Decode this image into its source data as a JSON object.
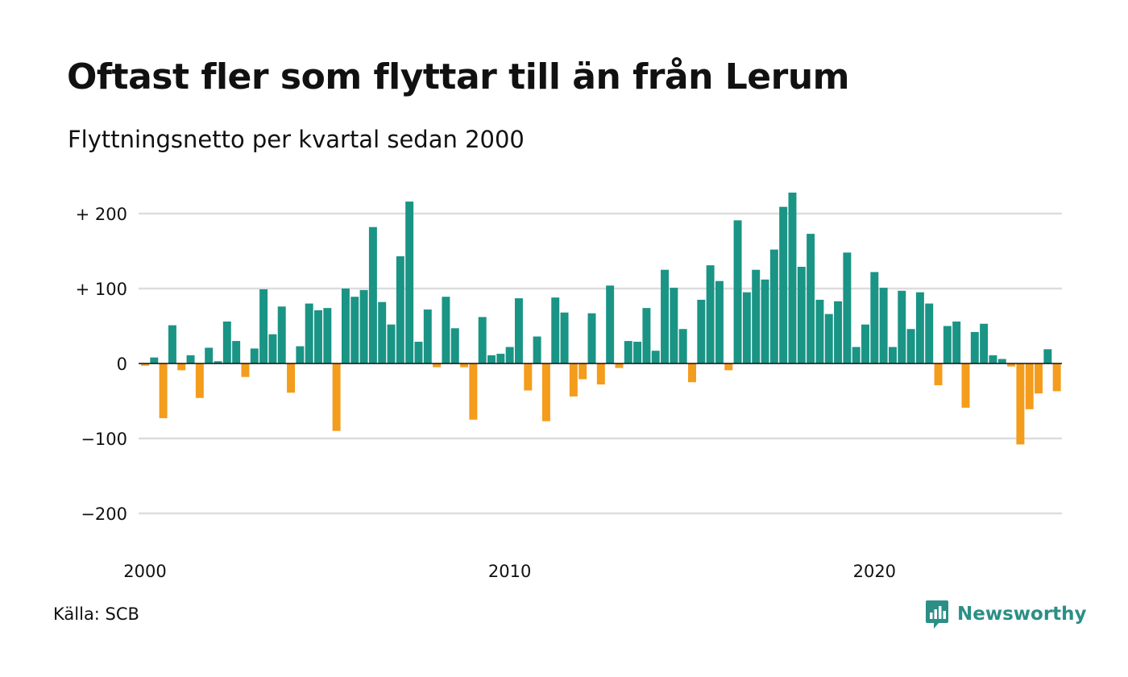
{
  "title": "Oftast fler som flyttar till än från Lerum",
  "subtitle": "Flyttningsnetto per kvartal sedan 2000",
  "source": "Källa: SCB",
  "brand": {
    "name": "Newsworthy",
    "icon": "newsworthy-logo-icon",
    "color": "#2b8f86"
  },
  "colors": {
    "positive": "#1a9485",
    "negative": "#f49c1c",
    "grid": "#dddddd",
    "zero_line": "#111111"
  },
  "chart_data": {
    "type": "bar",
    "x_unit": "quarter",
    "x_start": "2000 Q1",
    "x_ticks": [
      "2000",
      "2010",
      "2020"
    ],
    "y_ticks": [
      "+ 200",
      "+ 100",
      "0",
      "−100",
      "−200"
    ],
    "y_tick_values": [
      200,
      100,
      0,
      -100,
      -200
    ],
    "ylim": [
      -230,
      230
    ],
    "grid": true,
    "values": [
      -3,
      8,
      -73,
      51,
      -9,
      11,
      -46,
      21,
      3,
      56,
      30,
      -18,
      20,
      99,
      39,
      76,
      -39,
      23,
      80,
      71,
      74,
      -90,
      100,
      89,
      98,
      182,
      82,
      52,
      143,
      216,
      29,
      72,
      -5,
      89,
      47,
      -5,
      -75,
      62,
      11,
      13,
      22,
      87,
      -36,
      36,
      -77,
      88,
      68,
      -44,
      -21,
      67,
      -28,
      104,
      -6,
      30,
      29,
      74,
      17,
      125,
      101,
      46,
      -25,
      85,
      131,
      110,
      -9,
      191,
      95,
      125,
      112,
      152,
      209,
      228,
      129,
      173,
      85,
      66,
      83,
      148,
      22,
      52,
      122,
      101,
      22,
      97,
      46,
      95,
      80,
      -29,
      50,
      56,
      -59,
      42,
      53,
      11,
      6,
      -4,
      -108,
      -61,
      -40,
      19,
      -37
    ]
  }
}
